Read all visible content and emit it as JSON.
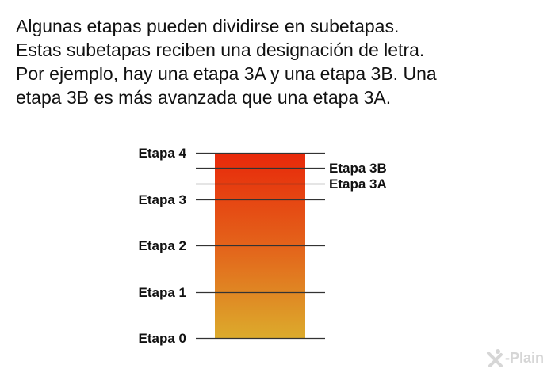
{
  "intro": {
    "lines": [
      "Algunas etapas pueden dividirse en subetapas.",
      "Estas subetapas reciben una designación de letra.",
      "Por ejemplo, hay una etapa 3A y una etapa 3B. Una",
      "etapa 3B es más avanzada que una etapa 3A."
    ]
  },
  "stages": [
    {
      "label": "Etapa 4",
      "level": 4
    },
    {
      "label": "Etapa 3",
      "level": 3
    },
    {
      "label": "Etapa 2",
      "level": 2
    },
    {
      "label": "Etapa 1",
      "level": 1
    },
    {
      "label": "Etapa 0",
      "level": 0
    }
  ],
  "substages": [
    {
      "label": "Etapa 3B",
      "level": 3.67
    },
    {
      "label": "Etapa 3A",
      "level": 3.33
    }
  ],
  "colors": {
    "bar_top": "#e8280a",
    "bar_bottom": "#dcab2c",
    "tick": "#333333",
    "logo": "#d6d6d6"
  },
  "logo": {
    "text": "-Plain",
    "mark": "X"
  }
}
